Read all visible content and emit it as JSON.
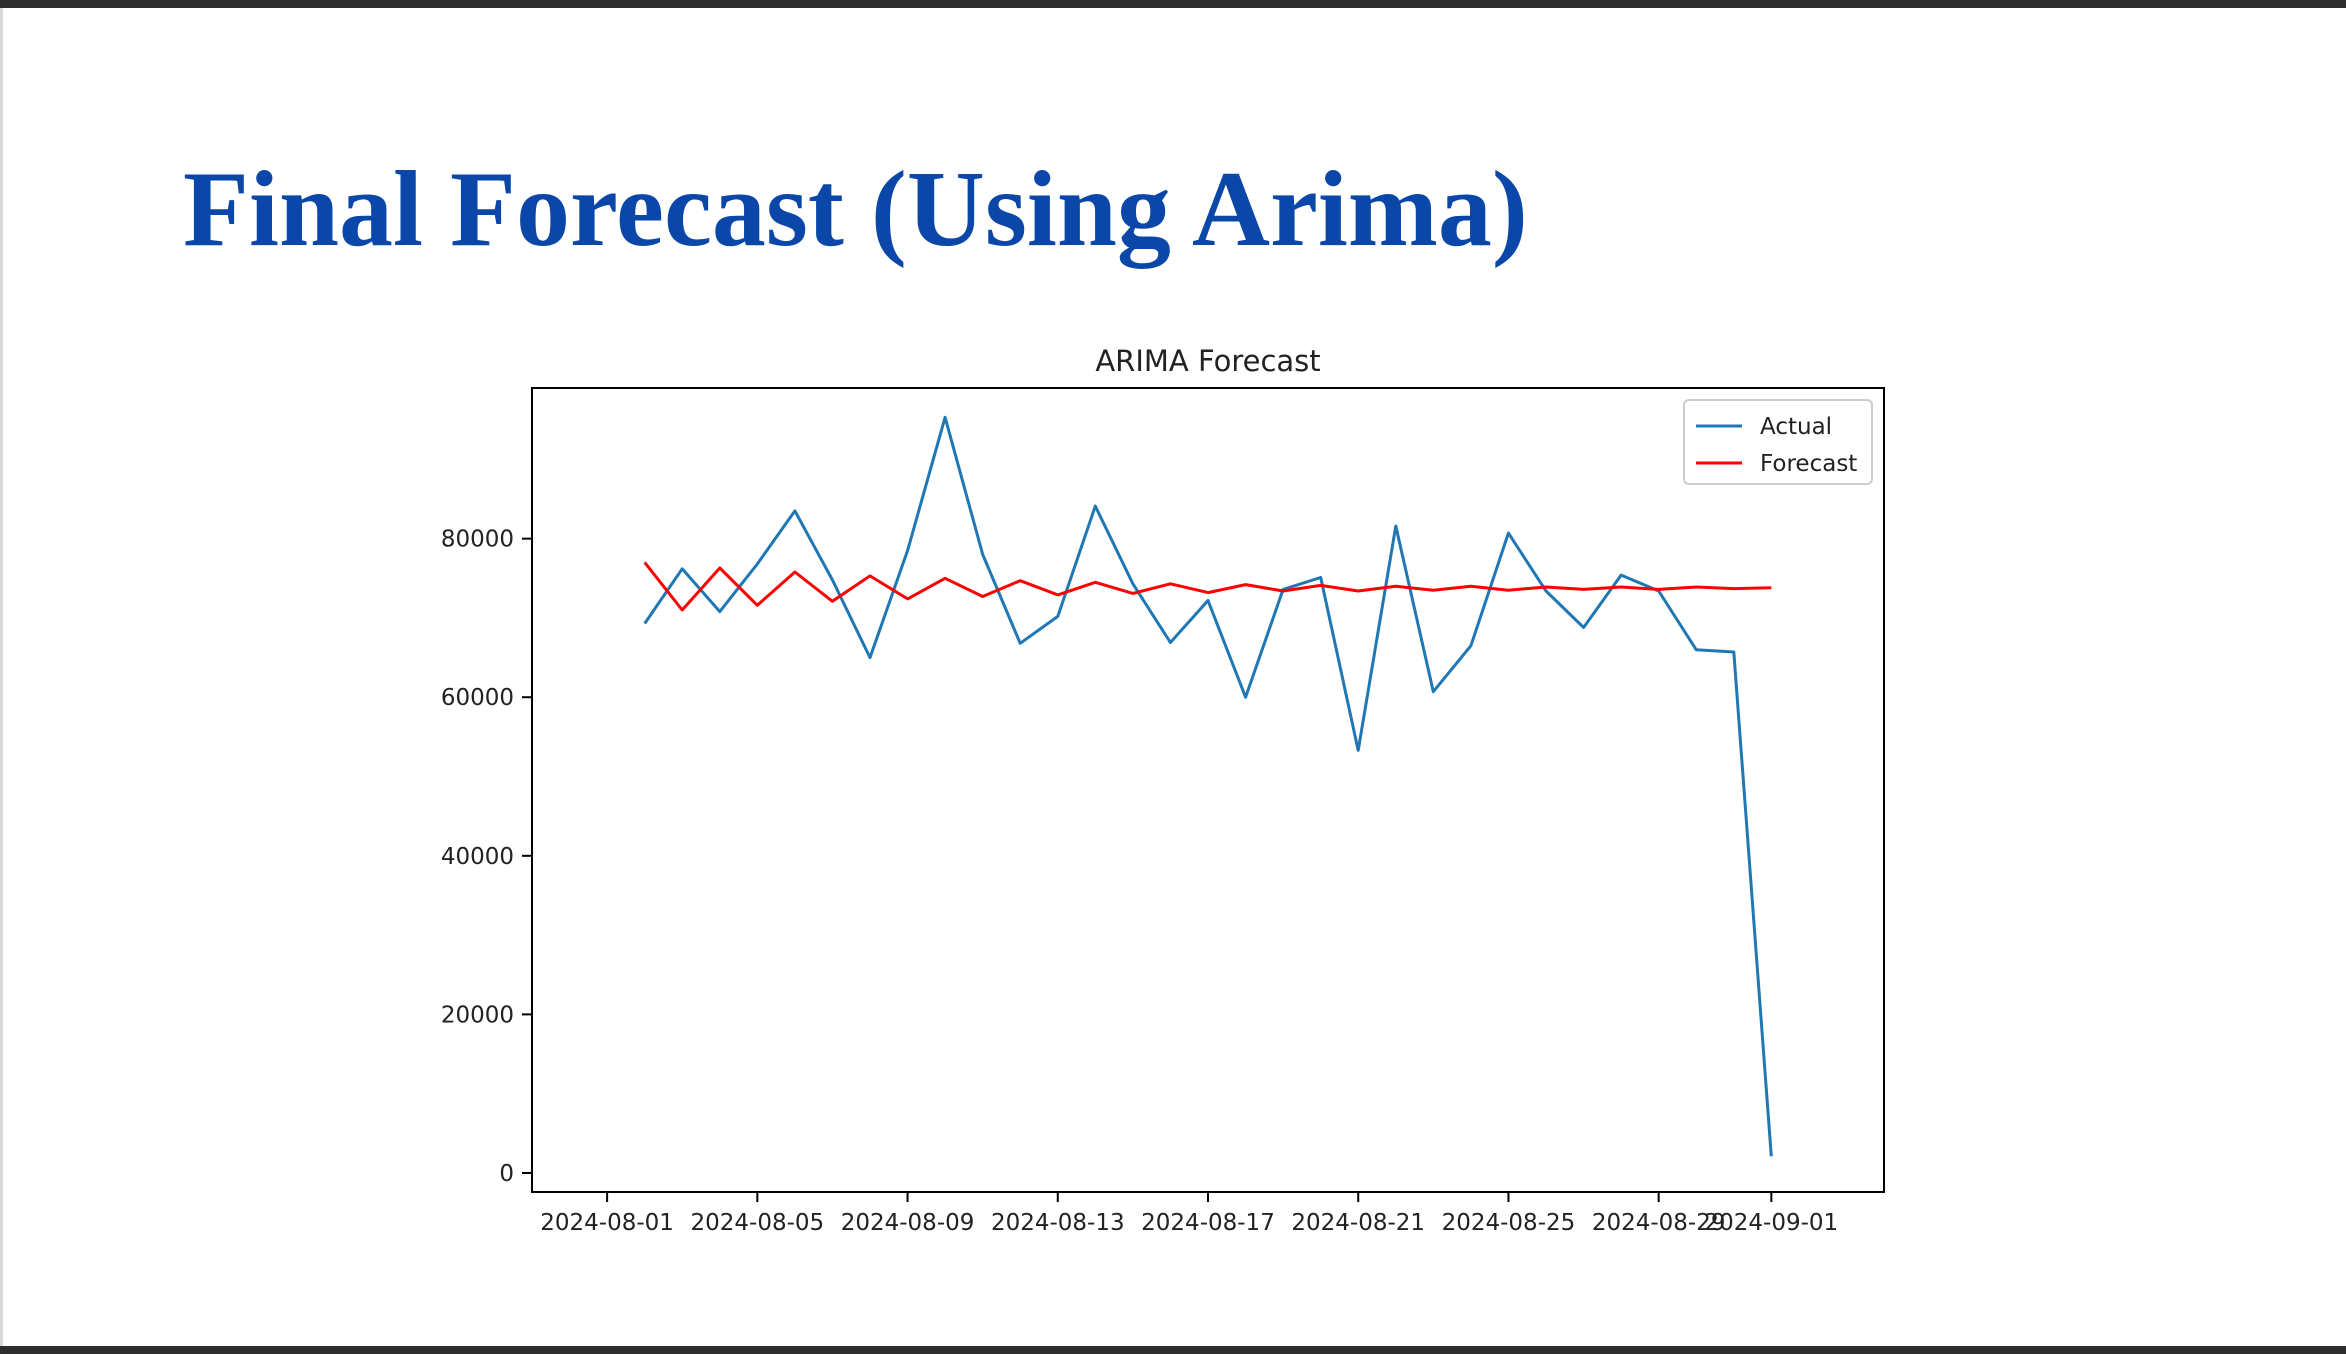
{
  "slide": {
    "title": "Final Forecast (Using Arima)",
    "title_color": "#0a47a9"
  },
  "chart_data": {
    "type": "line",
    "title": "ARIMA Forecast",
    "xlabel": "",
    "ylabel": "",
    "xlim": [
      "2024-07-30",
      "2024-09-04"
    ],
    "ylim": [
      -2400,
      99000
    ],
    "x_ticks": [
      "2024-08-01",
      "2024-08-05",
      "2024-08-09",
      "2024-08-13",
      "2024-08-17",
      "2024-08-21",
      "2024-08-25",
      "2024-08-29",
      "2024-09-01"
    ],
    "y_ticks": [
      0,
      20000,
      40000,
      60000,
      80000
    ],
    "grid": false,
    "legend": "upper right",
    "x": [
      "2024-08-02",
      "2024-08-03",
      "2024-08-04",
      "2024-08-05",
      "2024-08-06",
      "2024-08-07",
      "2024-08-08",
      "2024-08-09",
      "2024-08-10",
      "2024-08-11",
      "2024-08-12",
      "2024-08-13",
      "2024-08-14",
      "2024-08-15",
      "2024-08-16",
      "2024-08-17",
      "2024-08-18",
      "2024-08-19",
      "2024-08-20",
      "2024-08-21",
      "2024-08-22",
      "2024-08-23",
      "2024-08-24",
      "2024-08-25",
      "2024-08-26",
      "2024-08-27",
      "2024-08-28",
      "2024-08-29",
      "2024-08-30",
      "2024-08-31",
      "2024-09-01"
    ],
    "series": [
      {
        "name": "Actual",
        "color": "#1f77b4",
        "values": [
          69300,
          76200,
          70800,
          76800,
          83500,
          74800,
          65000,
          78500,
          95300,
          78000,
          66800,
          70200,
          84100,
          74300,
          66900,
          72200,
          60000,
          73600,
          75100,
          53300,
          81600,
          60700,
          66500,
          80700,
          73400,
          68800,
          75400,
          73400,
          66000,
          65700,
          2100
        ]
      },
      {
        "name": "Forecast",
        "color": "#ff0000",
        "values": [
          77000,
          71000,
          76300,
          71600,
          75800,
          72100,
          75300,
          72400,
          75000,
          72700,
          74700,
          72900,
          74500,
          73100,
          74300,
          73200,
          74200,
          73400,
          74100,
          73400,
          74000,
          73500,
          74000,
          73500,
          73900,
          73600,
          73900,
          73600,
          73900,
          73700,
          73800
        ]
      }
    ]
  }
}
